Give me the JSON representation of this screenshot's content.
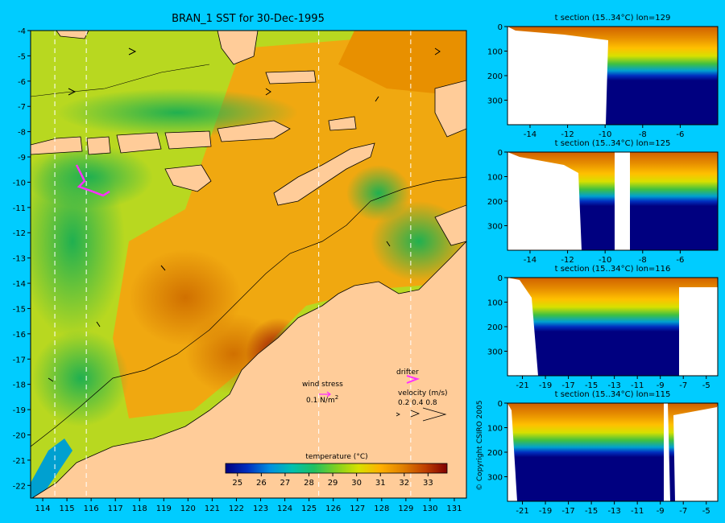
{
  "main_map": {
    "title": "BRAN_1 SST for 30-Dec-1995",
    "lon_range": [
      113.5,
      131.5
    ],
    "lat_range": [
      -22.5,
      -4
    ],
    "lon_ticks": [
      114,
      115,
      116,
      117,
      118,
      119,
      120,
      121,
      122,
      123,
      124,
      125,
      126,
      127,
      128,
      129,
      130,
      131
    ],
    "lat_ticks": [
      -4,
      -5,
      -6,
      -7,
      -8,
      -9,
      -10,
      -11,
      -12,
      -13,
      -14,
      -15,
      -16,
      -17,
      -18,
      -19,
      -20,
      -21,
      -22
    ],
    "section_lons": [
      114.5,
      115.8,
      125.4,
      129.2
    ],
    "land_color": "#ffcc99"
  },
  "legend": {
    "wind_label": "wind stress",
    "wind_value": "0.1 N/m",
    "wind_exp": "2",
    "drifter_label": "drifter",
    "velocity_label": "velocity (m/s)",
    "velocity_values": "0.2 0.4 0.8",
    "arrow_glyphs": ">  >>  >>>"
  },
  "colorbar": {
    "title": "temperature (°C)",
    "ticks": [
      "25",
      "26",
      "27",
      "28",
      "29",
      "30",
      "31",
      "32",
      "33"
    ],
    "range": [
      24.5,
      33.8
    ],
    "colors": [
      "#000080",
      "#0030c0",
      "#0090e0",
      "#00c0b0",
      "#20c060",
      "#80d020",
      "#d8e000",
      "#ffb000",
      "#e08000",
      "#c04000",
      "#800000"
    ]
  },
  "copyright": "© Copyright CSIRO 2005",
  "sections": [
    {
      "title": "t section (15..34°C) lon=129",
      "x_ticks": [
        "-14",
        "-12",
        "-10",
        "-8",
        "-6"
      ],
      "y_ticks": [
        "0",
        "100",
        "200",
        "300"
      ],
      "x_range": [
        -15.2,
        -4
      ],
      "y_range": [
        0,
        400
      ]
    },
    {
      "title": "t section (15..34°C) lon=125",
      "x_ticks": [
        "-14",
        "-12",
        "-10",
        "-8",
        "-6"
      ],
      "y_ticks": [
        "0",
        "100",
        "200",
        "300"
      ],
      "x_range": [
        -15.2,
        -4
      ],
      "y_range": [
        0,
        400
      ]
    },
    {
      "title": "t section (15..34°C) lon=116",
      "x_ticks": [
        "-21",
        "-19",
        "-17",
        "-15",
        "-13",
        "-11",
        "-9",
        "-7",
        "-5"
      ],
      "y_ticks": [
        "0",
        "100",
        "200",
        "300"
      ],
      "x_range": [
        -22.3,
        -4
      ],
      "y_range": [
        0,
        400
      ]
    },
    {
      "title": "t section (15..34°C) lon=115",
      "x_ticks": [
        "-21",
        "-19",
        "-17",
        "-15",
        "-13",
        "-11",
        "-9",
        "-7",
        "-5"
      ],
      "y_ticks": [
        "0",
        "100",
        "200",
        "300"
      ],
      "x_range": [
        -22.3,
        -4
      ],
      "y_range": [
        0,
        400
      ]
    }
  ],
  "chart_data": [
    {
      "type": "heatmap",
      "title": "BRAN_1 SST for 30-Dec-1995",
      "xlabel": "",
      "ylabel": "",
      "xlim": [
        113.5,
        131.5
      ],
      "ylim": [
        -22.5,
        -4
      ],
      "colorbar_label": "temperature (°C)",
      "colorbar_range": [
        24.5,
        33.8
      ]
    },
    {
      "type": "heatmap",
      "title": "t section (15..34°C) lon=129",
      "xlim": [
        -15.2,
        -4
      ],
      "ylim": [
        400,
        0
      ]
    },
    {
      "type": "heatmap",
      "title": "t section (15..34°C) lon=125",
      "xlim": [
        -15.2,
        -4
      ],
      "ylim": [
        400,
        0
      ]
    },
    {
      "type": "heatmap",
      "title": "t section (15..34°C) lon=116",
      "xlim": [
        -22.3,
        -4
      ],
      "ylim": [
        400,
        0
      ]
    },
    {
      "type": "heatmap",
      "title": "t section (15..34°C) lon=115",
      "xlim": [
        -22.3,
        -4
      ],
      "ylim": [
        400,
        0
      ]
    }
  ]
}
